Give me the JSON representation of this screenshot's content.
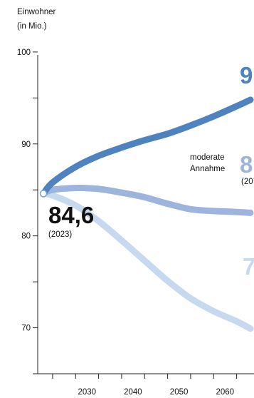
{
  "chart_data": {
    "type": "line",
    "ylabel_line1": "Einwohner",
    "ylabel_line2": "(in Mio.)",
    "ylim": [
      65,
      101
    ],
    "xlim": [
      2021,
      2073
    ],
    "y_ticks": [
      {
        "value": 100,
        "label": "100"
      },
      {
        "value": 90,
        "label": "90"
      },
      {
        "value": 80,
        "label": "80"
      },
      {
        "value": 70,
        "label": "70"
      }
    ],
    "y_minor_ticks": [
      95,
      85,
      75
    ],
    "x_tick_labels": [
      {
        "value": 2030,
        "label": "2030"
      },
      {
        "value": 2040,
        "label": "2040"
      },
      {
        "value": 2050,
        "label": "2050"
      },
      {
        "value": 2060,
        "label": "2060"
      }
    ],
    "x_minor_ticks": [
      2025,
      2035,
      2045,
      2055,
      2065,
      2070
    ],
    "start_point": {
      "x": 2023,
      "y": 84.6,
      "value_label": "84,6",
      "year_label": "(2023)"
    },
    "series": [
      {
        "color": "#4f83c0",
        "points": [
          [
            2023,
            84.6
          ],
          [
            2025,
            85.8
          ],
          [
            2030,
            87.5
          ],
          [
            2035,
            88.7
          ],
          [
            2040,
            89.6
          ],
          [
            2045,
            90.4
          ],
          [
            2050,
            91.1
          ],
          [
            2055,
            92.0
          ],
          [
            2060,
            93.0
          ],
          [
            2065,
            94.1
          ],
          [
            2068,
            94.8
          ]
        ],
        "end_label": "9"
      },
      {
        "color": "#9db4dc",
        "points": [
          [
            2023,
            84.6
          ],
          [
            2025,
            85.0
          ],
          [
            2030,
            85.2
          ],
          [
            2035,
            85.1
          ],
          [
            2040,
            84.7
          ],
          [
            2045,
            84.2
          ],
          [
            2050,
            83.5
          ],
          [
            2055,
            82.9
          ],
          [
            2060,
            82.7
          ],
          [
            2065,
            82.6
          ],
          [
            2068,
            82.5
          ]
        ],
        "annotation_line1": "moderate",
        "annotation_line2": "Annahme",
        "end_label": "8",
        "end_sublabel": "(20"
      },
      {
        "color": "#c6d9ee",
        "points": [
          [
            2023,
            84.6
          ],
          [
            2025,
            84.4
          ],
          [
            2030,
            83.3
          ],
          [
            2035,
            81.6
          ],
          [
            2040,
            79.5
          ],
          [
            2045,
            77.3
          ],
          [
            2050,
            75.1
          ],
          [
            2055,
            73.2
          ],
          [
            2060,
            71.8
          ],
          [
            2065,
            70.7
          ],
          [
            2068,
            69.9
          ]
        ],
        "end_label": "7"
      }
    ]
  }
}
